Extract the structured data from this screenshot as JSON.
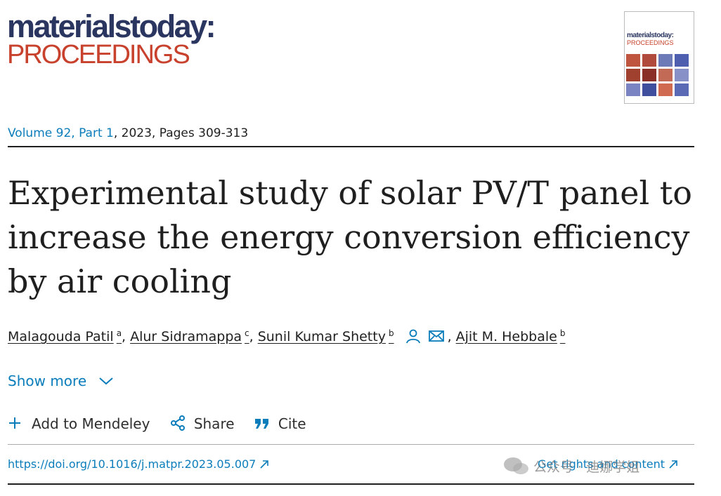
{
  "header": {
    "logo_line1": "materialstoday:",
    "logo_line2": "PROCEEDINGS"
  },
  "cover": {
    "line1": "materialstoday:",
    "line2": "PROCEEDINGS"
  },
  "citation": {
    "volume_link": "Volume 92, Part 1",
    "rest": ", 2023, Pages 309-313"
  },
  "article": {
    "title": "Experimental study of solar PV/T panel to increase the energy conversion efficiency by air cooling"
  },
  "authors": [
    {
      "name": "Malagouda Patil",
      "sup": "a",
      "separator": ","
    },
    {
      "name": "Alur Sidramappa",
      "sup": "c",
      "separator": ","
    },
    {
      "name": "Sunil Kumar Shetty",
      "sup": "b",
      "separator": ","
    },
    {
      "name": "Ajit M. Hebbale",
      "sup": "b"
    }
  ],
  "show_more": "Show more",
  "actions": {
    "mendeley": "Add to Mendeley",
    "share": "Share",
    "cite": "Cite"
  },
  "links": {
    "doi": "https://doi.org/10.1016/j.matpr.2023.05.007",
    "rights": "Get rights and content"
  },
  "watermark": "公众号 · 迪娜学姐"
}
